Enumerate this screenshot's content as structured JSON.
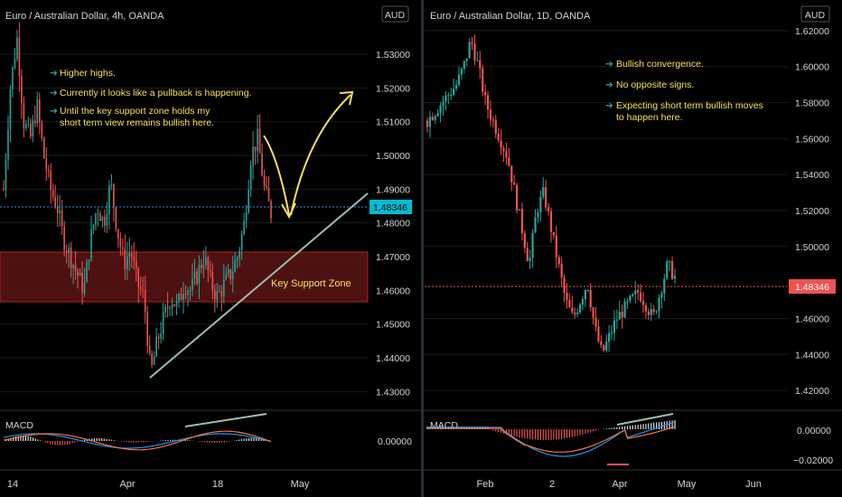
{
  "colors": {
    "background": "#000000",
    "bull": "#26a69a",
    "bear": "#ef5350",
    "price_line": "#2196f3",
    "price_label_left": "#00bcd4",
    "price_label_right": "#ef5350",
    "annotation": "#f5e15a",
    "trendline": "#9bbfae",
    "zone_fill": "#5a1414",
    "zone_border": "#b71c1c",
    "macd_line": "#2196f3",
    "signal_line": "#ff7043",
    "axis_text": "#d1d4dc",
    "grid": "#1a1a1a"
  },
  "left_panel": {
    "title": "Euro / Australian Dollar, 4h, OANDA",
    "currency_badge": "AUD",
    "current_price": "1.48346",
    "price_ticks": [
      "1.53000",
      "1.52000",
      "1.51000",
      "1.50000",
      "1.49000",
      "1.48000",
      "1.47000",
      "1.46000",
      "1.45000",
      "1.44000",
      "1.43000"
    ],
    "time_ticks": [
      "14",
      "Apr",
      "18",
      "May"
    ],
    "notes": [
      "Higher highs.",
      "Currently it looks like a pullback is happening.",
      "Until the key support zone holds my",
      "short term view remains bullish here."
    ],
    "zone_label": "Key Support Zone",
    "macd_label": "MACD",
    "macd_tick": "0.00000"
  },
  "right_panel": {
    "title": "Euro / Australian Dollar, 1D, OANDA",
    "currency_badge": "AUD",
    "current_price": "1.48346",
    "price_ticks": [
      "1.62000",
      "1.60000",
      "1.58000",
      "1.56000",
      "1.54000",
      "1.52000",
      "1.50000",
      "1.46000",
      "1.44000",
      "1.42000"
    ],
    "time_ticks": [
      "Feb",
      "2",
      "Apr",
      "May",
      "Jun"
    ],
    "notes": [
      "Bullish convergence.",
      "No opposite signs.",
      "Expecting short term bullish moves",
      "to happen here."
    ],
    "macd_label": "MACD",
    "macd_ticks": [
      "0.00000",
      "−0.02000"
    ]
  },
  "chart_data": [
    {
      "type": "candlestick",
      "title": "Euro / Australian Dollar, 4h, OANDA",
      "ylim": [
        1.425,
        1.545
      ],
      "x_ticks": [
        "14",
        "Apr",
        "18",
        "May"
      ],
      "close_path": [
        1.49,
        1.52,
        1.535,
        1.51,
        1.505,
        1.515,
        1.5,
        1.49,
        1.485,
        1.475,
        1.47,
        1.465,
        1.46,
        1.475,
        1.485,
        1.48,
        1.492,
        1.478,
        1.468,
        1.472,
        1.462,
        1.458,
        1.435,
        1.445,
        1.452,
        1.458,
        1.455,
        1.462,
        1.46,
        1.465,
        1.47,
        1.462,
        1.458,
        1.462,
        1.465,
        1.47,
        1.48,
        1.5,
        1.505,
        1.49,
        1.483
      ],
      "last_price": 1.48346,
      "key_support_zone": [
        1.455,
        1.47
      ],
      "annotations": [
        "Higher highs.",
        "Currently it looks like a pullback is happening.",
        "Until the key support zone holds my short term view remains bullish here.",
        "Key Support Zone"
      ]
    },
    {
      "type": "candlestick",
      "title": "Euro / Australian Dollar, 1D, OANDA",
      "ylim": [
        1.41,
        1.635
      ],
      "x_ticks": [
        "Feb",
        "2",
        "Apr",
        "May",
        "Jun"
      ],
      "close_path": [
        1.57,
        1.575,
        1.58,
        1.585,
        1.59,
        1.6,
        1.615,
        1.6,
        1.58,
        1.57,
        1.56,
        1.55,
        1.53,
        1.51,
        1.49,
        1.52,
        1.53,
        1.51,
        1.49,
        1.47,
        1.46,
        1.47,
        1.48,
        1.455,
        1.44,
        1.45,
        1.46,
        1.465,
        1.47,
        1.475,
        1.468,
        1.46,
        1.475,
        1.49,
        1.483
      ],
      "last_price": 1.48346,
      "annotations": [
        "Bullish convergence.",
        "No opposite signs.",
        "Expecting short term bullish moves to happen here."
      ]
    }
  ]
}
